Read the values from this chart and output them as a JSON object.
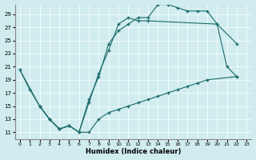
{
  "xlabel": "Humidex (Indice chaleur)",
  "bg_color": "#d0ecee",
  "line_color": "#1a6b6b",
  "xlim": [
    -0.5,
    23.5
  ],
  "ylim": [
    10,
    30
  ],
  "xticks": [
    0,
    1,
    2,
    3,
    4,
    5,
    6,
    7,
    8,
    9,
    10,
    11,
    12,
    13,
    14,
    15,
    16,
    17,
    18,
    19,
    20,
    21,
    22,
    23
  ],
  "yticks": [
    11,
    13,
    15,
    17,
    19,
    21,
    23,
    25,
    27,
    29
  ],
  "line1": {
    "x": [
      0,
      1,
      2,
      3,
      4,
      5,
      6,
      7,
      8,
      9,
      10,
      11,
      12,
      13,
      14,
      15,
      16,
      17,
      18,
      19,
      20,
      21,
      22
    ],
    "y": [
      20.5,
      17.5,
      15.0,
      13.0,
      11.5,
      12.0,
      11.0,
      16.0,
      19.5,
      24.5,
      26.5,
      27.5,
      28.5,
      28.5,
      30.5,
      30.5,
      30.0,
      29.5,
      29.5,
      29.5,
      27.5,
      21.0,
      19.5
    ]
  },
  "line2": {
    "x": [
      2,
      3,
      4,
      5,
      6,
      7,
      8,
      9,
      10,
      11,
      12,
      13,
      20,
      22
    ],
    "y": [
      15.0,
      13.0,
      11.5,
      12.0,
      11.0,
      15.5,
      20.0,
      23.5,
      27.5,
      28.5,
      28.0,
      28.0,
      27.5,
      24.5
    ]
  },
  "line3": {
    "x": [
      0,
      2,
      3,
      4,
      5,
      6,
      7,
      8,
      9,
      10,
      11,
      12,
      13,
      14,
      15,
      16,
      17,
      18,
      19,
      22
    ],
    "y": [
      20.5,
      15.0,
      13.0,
      11.5,
      12.0,
      11.0,
      11.0,
      13.0,
      14.0,
      14.5,
      15.0,
      15.5,
      16.0,
      16.5,
      17.0,
      17.5,
      18.0,
      18.5,
      19.0,
      19.5
    ]
  }
}
